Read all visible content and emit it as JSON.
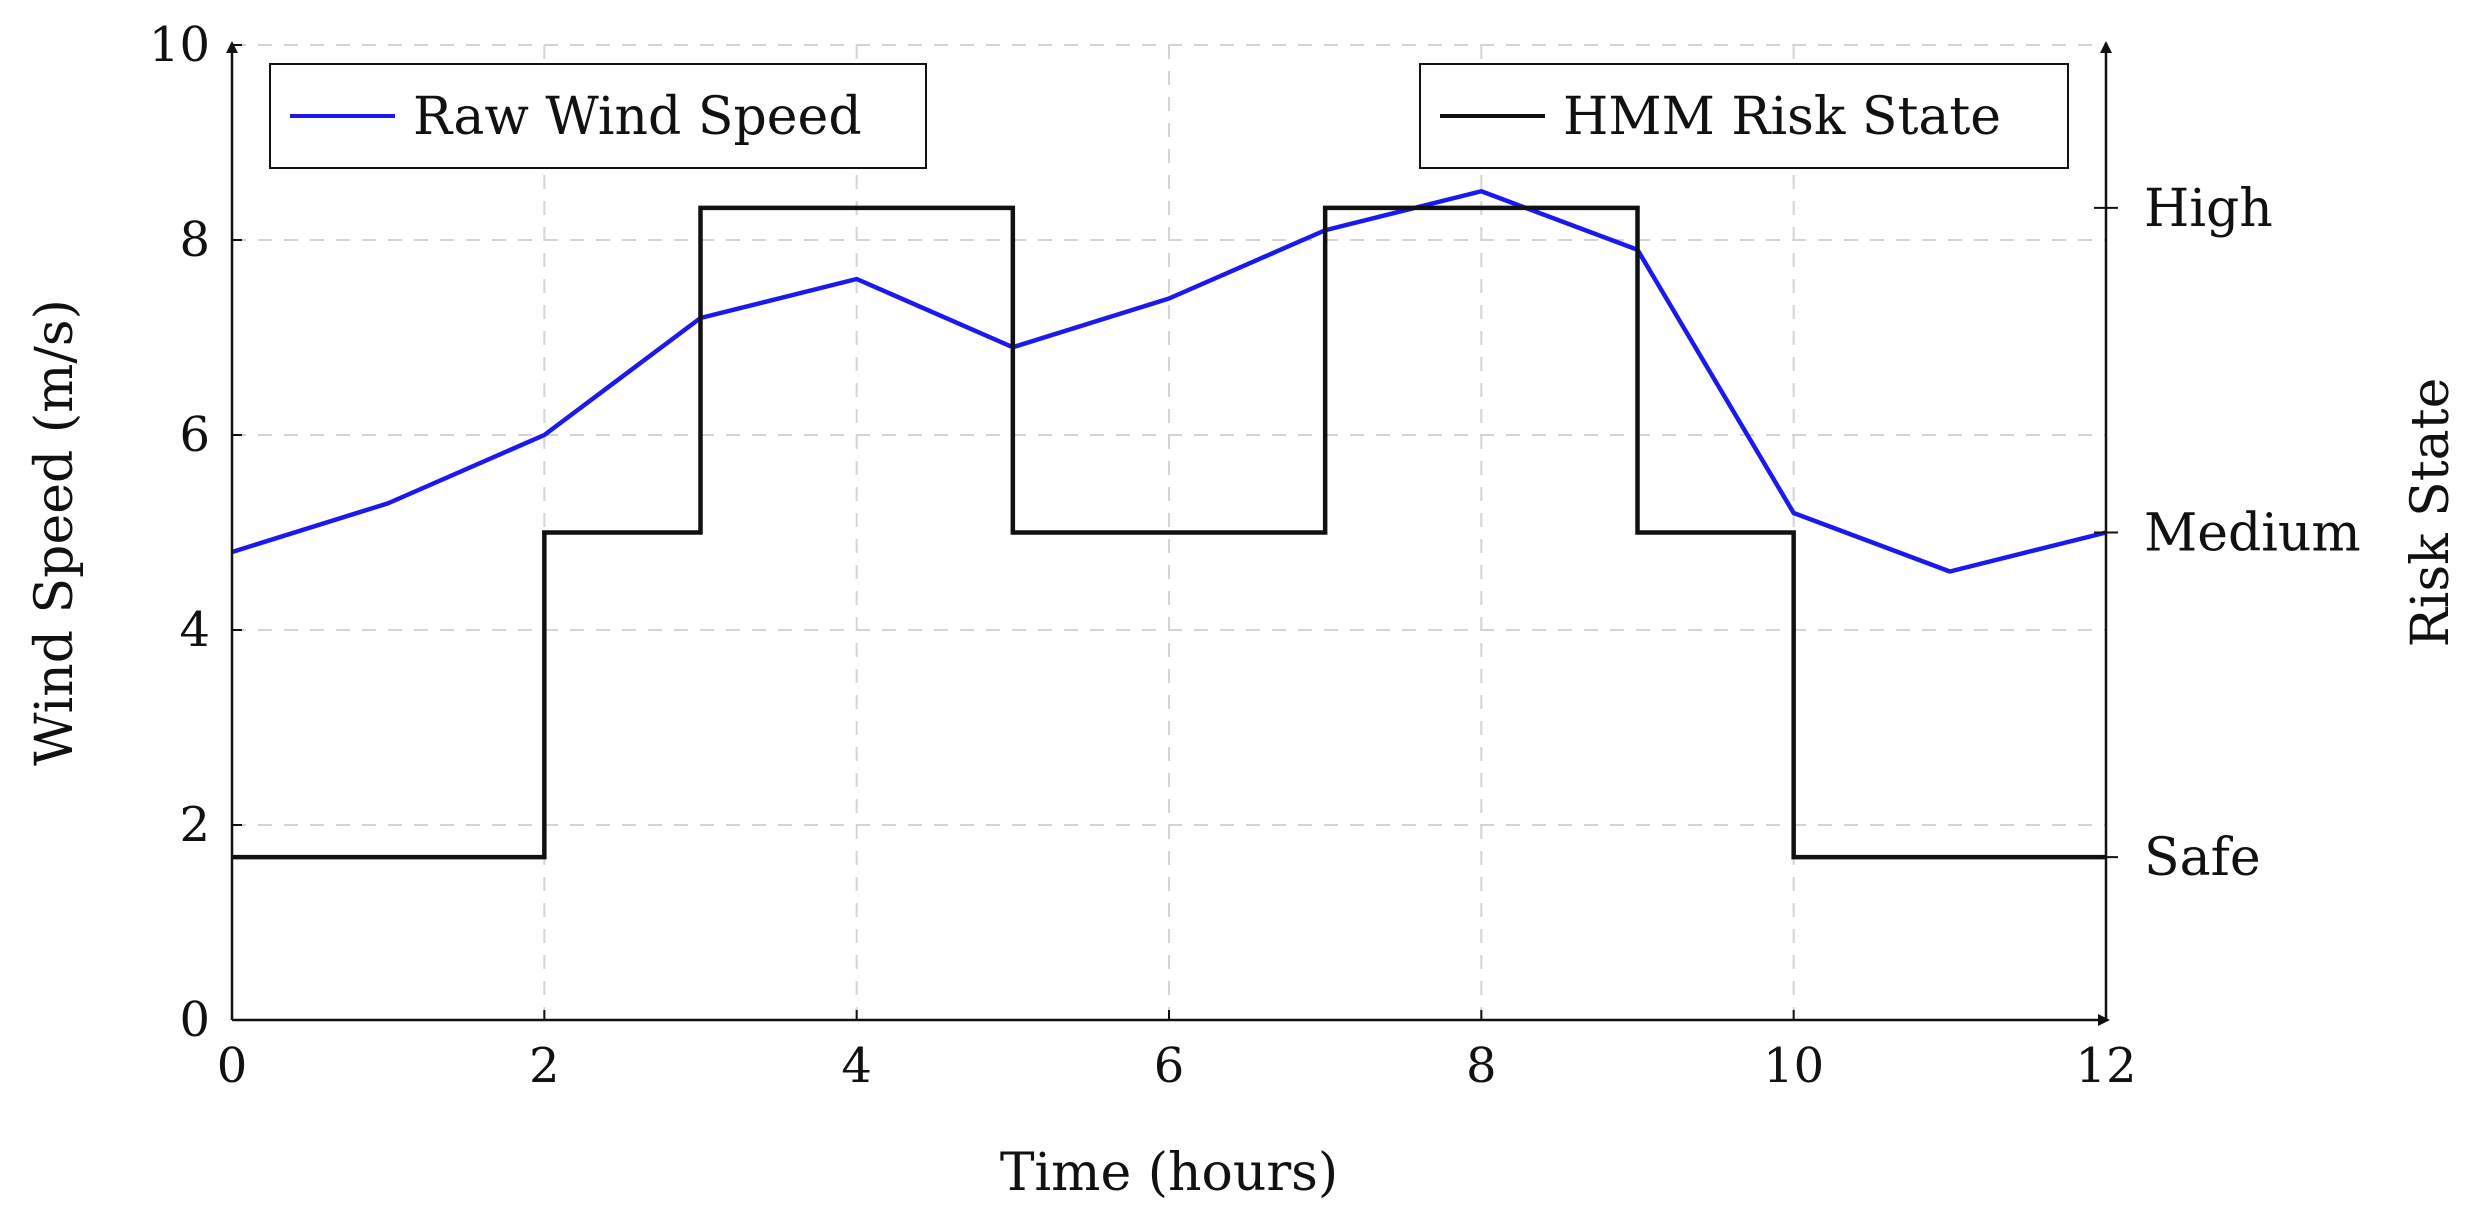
{
  "chart_data": {
    "type": "line",
    "title": "",
    "xlabel": "Time (hours)",
    "ylabel": "Wind Speed (m/s)",
    "y2label": "Risk State",
    "xlim": [
      0,
      12
    ],
    "ylim": [
      0,
      10
    ],
    "xticks": [
      0,
      2,
      4,
      6,
      8,
      10,
      12
    ],
    "yticks": [
      0,
      2,
      4,
      6,
      8,
      10
    ],
    "grid": true,
    "x": [
      0,
      1,
      2,
      3,
      4,
      5,
      6,
      7,
      8,
      9,
      10,
      11,
      12
    ],
    "series": [
      {
        "name": "Raw Wind Speed",
        "color": "#1a1aee",
        "axis": "left",
        "values": [
          4.8,
          5.3,
          6.0,
          7.2,
          7.6,
          6.9,
          7.4,
          8.1,
          8.5,
          7.9,
          5.2,
          4.6,
          5.0
        ]
      },
      {
        "name": "HMM Risk State",
        "color": "#111111",
        "axis": "right",
        "step": true,
        "segments": [
          {
            "from": 0,
            "to": 2,
            "state": "Safe"
          },
          {
            "from": 2,
            "to": 3,
            "state": "Medium"
          },
          {
            "from": 3,
            "to": 5,
            "state": "High"
          },
          {
            "from": 5,
            "to": 7,
            "state": "Medium"
          },
          {
            "from": 7,
            "to": 9,
            "state": "High"
          },
          {
            "from": 9,
            "to": 10,
            "state": "Medium"
          },
          {
            "from": 10,
            "to": 12,
            "state": "Safe"
          }
        ]
      }
    ],
    "right_axis": {
      "states": [
        {
          "label": "High",
          "value": 8.33
        },
        {
          "label": "Medium",
          "value": 5.0
        },
        {
          "label": "Safe",
          "value": 1.67
        }
      ]
    },
    "legend": [
      {
        "label": "Raw Wind Speed",
        "placement": "top-left"
      },
      {
        "label": "HMM Risk State",
        "placement": "top-right"
      }
    ]
  }
}
